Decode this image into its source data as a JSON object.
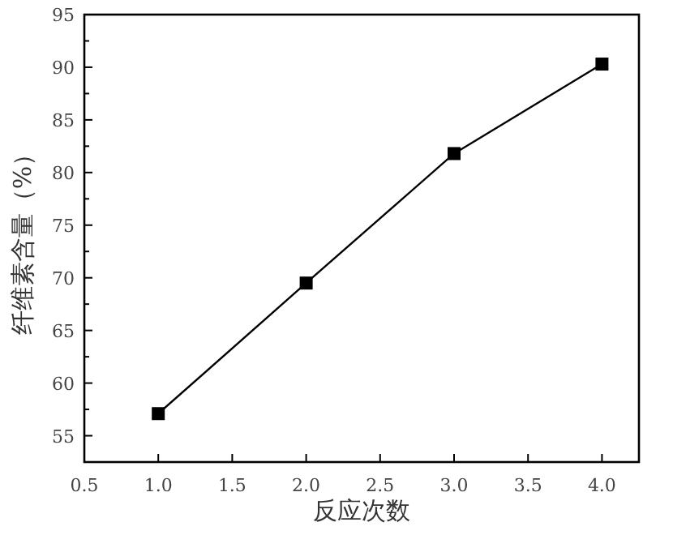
{
  "chart_data": {
    "type": "line",
    "xlabel": "反应次数",
    "ylabel": "纤维素含量（%）",
    "x": [
      1.0,
      2.0,
      3.0,
      4.0
    ],
    "series": [
      {
        "color": "#000000",
        "values": [
          57.1,
          69.5,
          81.8,
          90.3
        ]
      }
    ],
    "marker": "square",
    "line_style": "solid",
    "grid": false,
    "xlim": [
      0.5,
      4.25
    ],
    "ylim": [
      52.5,
      95
    ],
    "xticks": [
      {
        "value": 0.5,
        "label": "0.5"
      },
      {
        "value": 1.0,
        "label": "1.0"
      },
      {
        "value": 1.5,
        "label": "1.5"
      },
      {
        "value": 2.0,
        "label": "2.0"
      },
      {
        "value": 2.5,
        "label": "2.5"
      },
      {
        "value": 3.0,
        "label": "3.0"
      },
      {
        "value": 3.5,
        "label": "3.5"
      },
      {
        "value": 4.0,
        "label": "4.0"
      }
    ],
    "yticks": [
      55,
      {
        "value": 57.5,
        "label": null
      },
      60,
      {
        "value": 62.5,
        "label": null
      },
      65,
      {
        "value": 67.5,
        "label": null
      },
      70,
      {
        "value": 72.5,
        "label": null
      },
      75,
      {
        "value": 77.5,
        "label": null
      },
      80,
      {
        "value": 82.5,
        "label": null
      },
      85,
      {
        "value": 87.5,
        "label": null
      },
      90,
      {
        "value": 92.5,
        "label": null
      },
      95
    ]
  }
}
